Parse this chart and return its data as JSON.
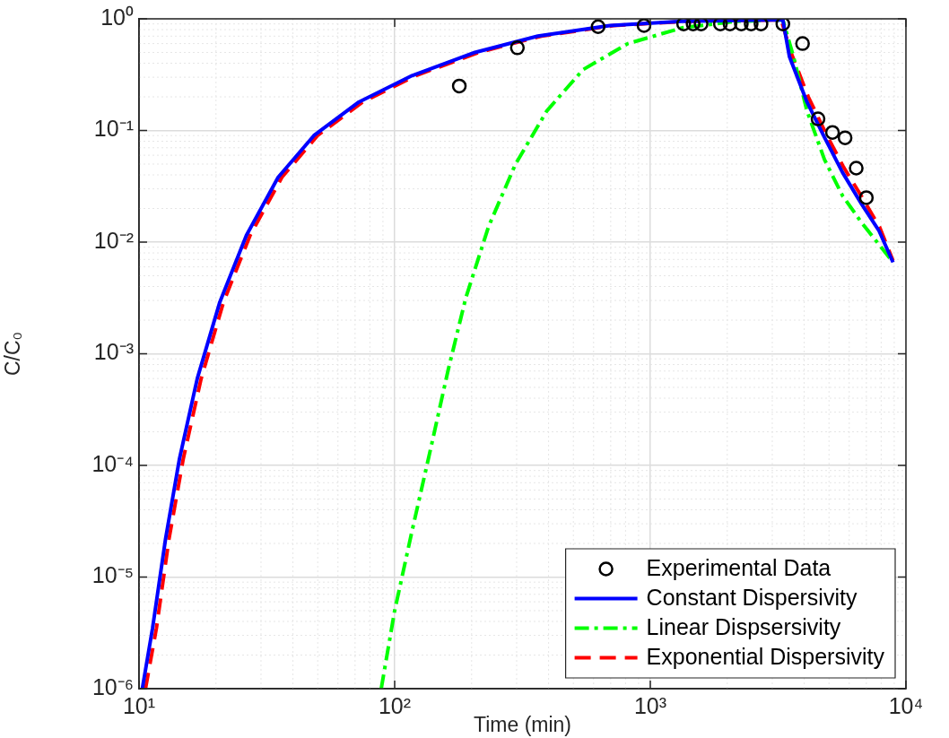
{
  "chart_data": {
    "type": "line",
    "xlabel": "Time (min)",
    "ylabel": "C/C₀",
    "log": "xy",
    "grid": true,
    "legend": "bottom right",
    "xlim": [
      10,
      10000
    ],
    "ylim": [
      1e-06,
      1
    ],
    "xticks": [
      {
        "value": 10,
        "label": "10¹"
      },
      {
        "value": 100,
        "label": "10²"
      },
      {
        "value": 1000,
        "label": "10³"
      },
      {
        "value": 10000,
        "label": "10⁴"
      }
    ],
    "yticks": [
      {
        "value": 1e-06,
        "label": "10⁻⁶"
      },
      {
        "value": 1e-05,
        "label": "10⁻⁵"
      },
      {
        "value": 0.0001,
        "label": "10⁻⁴"
      },
      {
        "value": 0.001,
        "label": "10⁻³"
      },
      {
        "value": 0.01,
        "label": "10⁻²"
      },
      {
        "value": 0.1,
        "label": "10⁻¹"
      },
      {
        "value": 1,
        "label": "10⁰"
      }
    ],
    "series": [
      {
        "name": "Experimental Data",
        "type": "scatter",
        "color": "#000000",
        "marker": "circle",
        "x": [
          179,
          302,
          625,
          945,
          1350,
          1470,
          1580,
          1880,
          2050,
          2270,
          2480,
          2710,
          3300,
          3940,
          4530,
          5160,
          5780,
          6390,
          7000
        ],
        "values": [
          0.25,
          0.55,
          0.85,
          0.87,
          0.9,
          0.9,
          0.9,
          0.9,
          0.9,
          0.9,
          0.9,
          0.9,
          0.9,
          0.6,
          0.127,
          0.096,
          0.086,
          0.046,
          0.025
        ]
      },
      {
        "name": "Constant Dispersivity",
        "type": "line",
        "color": "#0000ff",
        "marker": "none",
        "line_style": "solid",
        "x": [
          10.3,
          11.3,
          12.7,
          14.4,
          16.9,
          20.7,
          26.3,
          35,
          48.3,
          72.5,
          117,
          206,
          363,
          694,
          1330,
          3300,
          3500,
          4100,
          4800,
          5650,
          6700,
          7850,
          8900
        ],
        "values": [
          1e-06,
          3.5e-06,
          2.2e-05,
          0.000115,
          0.0006,
          0.0029,
          0.0115,
          0.038,
          0.09,
          0.18,
          0.31,
          0.5,
          0.7,
          0.87,
          0.95,
          0.98,
          0.46,
          0.18,
          0.087,
          0.042,
          0.022,
          0.0126,
          0.0066
        ]
      },
      {
        "name": "Linear Dispsersivity",
        "type": "line",
        "color": "#00ff00",
        "marker": "none",
        "line_style": "dashdot",
        "x": [
          88.6,
          100,
          117,
          138,
          162,
          190,
          233,
          297,
          394,
          545,
          817,
          1330,
          2150,
          3300,
          3630,
          4100,
          4800,
          5650,
          6700,
          7850,
          8900
        ],
        "values": [
          1e-06,
          5e-06,
          2.6e-05,
          0.000138,
          0.00072,
          0.0032,
          0.0138,
          0.05,
          0.15,
          0.35,
          0.6,
          0.83,
          0.95,
          0.98,
          0.46,
          0.15,
          0.055,
          0.026,
          0.015,
          0.0095,
          0.0066
        ]
      },
      {
        "name": "Exponential Dispersivity",
        "type": "line",
        "color": "#ff0000",
        "marker": "none",
        "line_style": "dashed",
        "x": [
          10.6,
          11.7,
          13.1,
          14.9,
          17.5,
          21.4,
          27.2,
          36.2,
          49.9,
          74.9,
          121,
          213,
          375,
          717,
          1370,
          3250,
          3550,
          4150,
          4850,
          5700,
          6750,
          7900,
          8900
        ],
        "values": [
          1e-06,
          3.5e-06,
          2.2e-05,
          0.000115,
          0.0006,
          0.0029,
          0.0115,
          0.038,
          0.09,
          0.18,
          0.31,
          0.5,
          0.7,
          0.87,
          0.95,
          0.98,
          0.5,
          0.2,
          0.095,
          0.047,
          0.025,
          0.0135,
          0.0068
        ]
      }
    ]
  }
}
